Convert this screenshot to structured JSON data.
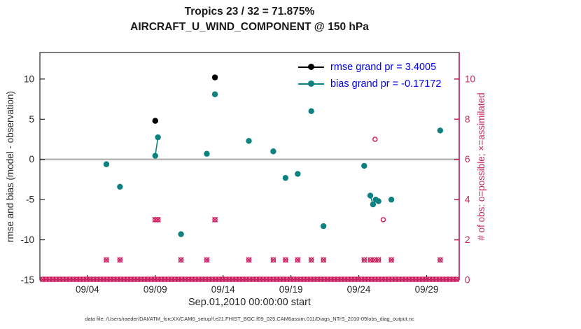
{
  "footer_note": "data file: /Users/raeder/DAI/ATM_forcXX/CAM6_setup/f.e21.FHIST_BGC.f09_025.CAM6assim.011/Diags_NTrS_2010-09/obs_diag_output.nc",
  "chart_data": {
    "type": "scatter",
    "title": "Tropics 23 / 32 = 71.875%",
    "subtitle": "AIRCRAFT_U_WIND_COMPONENT @ 150 hPa",
    "xlabel": "Sep.01,2010 00:00:00 start",
    "ylabel_left": "rmse and bias (model - observation)",
    "ylabel_right": "# of obs: o=possible; ×=assimilated",
    "xlim_days": [
      0.5,
      31.4
    ],
    "ylim_left": [
      -15,
      13.3
    ],
    "ylim_right": [
      0,
      11.32
    ],
    "x_ticks": [
      {
        "day": 4,
        "label": "09/04"
      },
      {
        "day": 9,
        "label": "09/09"
      },
      {
        "day": 14,
        "label": "09/14"
      },
      {
        "day": 19,
        "label": "09/19"
      },
      {
        "day": 24,
        "label": "09/24"
      },
      {
        "day": 29,
        "label": "09/29"
      }
    ],
    "y_ticks_left": [
      -15,
      -10,
      -5,
      0,
      5,
      10
    ],
    "y_ticks_right": [
      0,
      2,
      4,
      6,
      8,
      10
    ],
    "zero_line_y": 0,
    "legend": [
      {
        "series": "rmse",
        "label": "rmse grand pr = 3.4005",
        "color": "#000000"
      },
      {
        "series": "bias",
        "label": "bias grand pr = -0.17172",
        "color": "#0d8080"
      }
    ],
    "series": {
      "rmse": {
        "type": "line+marker",
        "color": "#000000",
        "points": [
          [
            9.0,
            4.8
          ],
          [
            13.4,
            10.2
          ]
        ]
      },
      "bias": {
        "type": "line+marker",
        "color": "#0d8080",
        "points": [
          [
            5.4,
            -0.6
          ],
          [
            6.4,
            -3.4
          ],
          [
            9.0,
            0.45
          ],
          [
            9.2,
            2.75
          ],
          [
            10.9,
            -9.3
          ],
          [
            12.8,
            0.7
          ],
          [
            13.4,
            8.1
          ],
          [
            15.9,
            2.3
          ],
          [
            17.7,
            1.0
          ],
          [
            18.6,
            -2.3
          ],
          [
            19.5,
            -1.8
          ],
          [
            20.5,
            6.0
          ],
          [
            21.4,
            -8.3
          ],
          [
            24.4,
            -0.8
          ],
          [
            24.85,
            -4.5
          ],
          [
            25.05,
            -5.6
          ],
          [
            25.25,
            -5.0
          ],
          [
            25.45,
            -5.2
          ],
          [
            26.4,
            -5.0
          ],
          [
            30.0,
            3.6
          ]
        ],
        "segments": [
          [
            [
              9.0,
              0.45
            ],
            [
              9.2,
              2.75
            ]
          ],
          [
            [
              24.85,
              -4.5
            ],
            [
              25.05,
              -5.6
            ],
            [
              25.25,
              -5.0
            ],
            [
              25.45,
              -5.2
            ]
          ]
        ]
      },
      "obs_counts": {
        "axis": "right",
        "color": "#cc2060",
        "marker": "o+x",
        "points": [
          [
            5.4,
            1
          ],
          [
            6.4,
            1
          ],
          [
            9.0,
            3
          ],
          [
            9.2,
            3
          ],
          [
            10.9,
            1
          ],
          [
            12.8,
            1
          ],
          [
            13.4,
            3
          ],
          [
            15.9,
            1
          ],
          [
            17.7,
            1
          ],
          [
            18.6,
            1
          ],
          [
            19.5,
            1
          ],
          [
            20.5,
            1
          ],
          [
            21.4,
            1
          ],
          [
            24.4,
            1
          ],
          [
            24.85,
            1
          ],
          [
            25.15,
            1
          ],
          [
            25.45,
            1
          ],
          [
            26.4,
            1
          ],
          [
            30.0,
            1
          ]
        ]
      },
      "obs_possible_only": {
        "axis": "right",
        "color": "#cc2060",
        "marker": "o",
        "points": [
          [
            25.2,
            7
          ],
          [
            25.8,
            3
          ]
        ]
      },
      "obs_zero_row": {
        "axis": "right",
        "color": "#cc2060",
        "marker": "o+x",
        "value": 0,
        "day_start": 0.7,
        "day_end": 31.3,
        "day_step": 0.25
      }
    },
    "colors": {
      "zero_line": "#b5b5b5",
      "axis": "#262626",
      "right_axis": "#cc2060",
      "legend_text": "#0000ee",
      "background": "#ffffff"
    }
  }
}
